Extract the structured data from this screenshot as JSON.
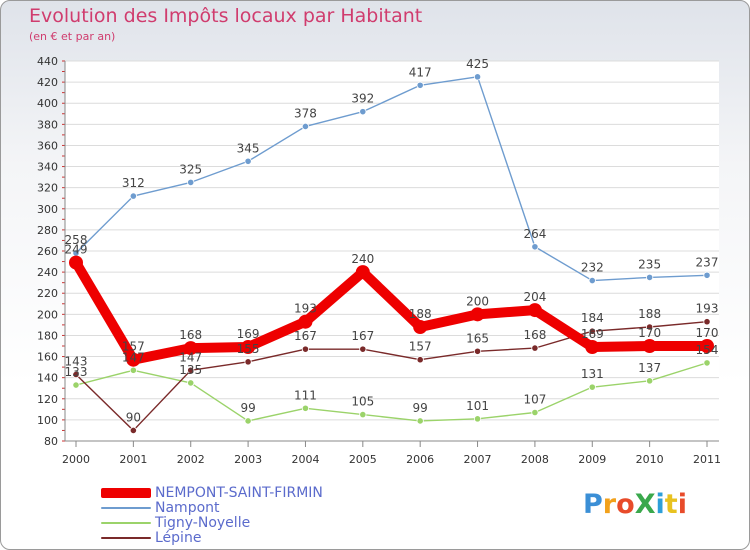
{
  "header": {
    "title": "Evolution des Impôts locaux par Habitant",
    "subtitle": "(en € et par an)"
  },
  "logo": {
    "text": "ProXiti"
  },
  "chart_data": {
    "type": "line",
    "title": "Evolution des Impôts locaux par Habitant",
    "subtitle": "(en € et par an)",
    "xlabel": "",
    "ylabel": "",
    "ylim": [
      80,
      440
    ],
    "yticks": [
      "80",
      "100",
      "120",
      "140",
      "160",
      "180",
      "200",
      "220",
      "240",
      "260",
      "280",
      "300",
      "320",
      "340",
      "360",
      "380",
      "400",
      "420",
      "440"
    ],
    "categories": [
      "2000",
      "2001",
      "2002",
      "2003",
      "2004",
      "2005",
      "2006",
      "2007",
      "2008",
      "2009",
      "2010",
      "2011"
    ],
    "grid": "horizontal",
    "legend_position": "bottom-left",
    "series": [
      {
        "name": "NEMPONT-SAINT-FIRMIN",
        "color": "#ee0000",
        "values": [
          249,
          157,
          168,
          169,
          193,
          240,
          188,
          200,
          204,
          169,
          170,
          170
        ]
      },
      {
        "name": "Nampont",
        "color": "#6e9ccf",
        "values": [
          258,
          312,
          325,
          345,
          378,
          392,
          417,
          425,
          264,
          232,
          235,
          237
        ]
      },
      {
        "name": "Tigny-Noyelle",
        "color": "#9bd36a",
        "values": [
          133,
          147,
          135,
          99,
          111,
          105,
          99,
          101,
          107,
          131,
          137,
          154
        ]
      },
      {
        "name": "Lépine",
        "color": "#7a2a2a",
        "values": [
          143,
          90,
          147,
          155,
          167,
          167,
          157,
          165,
          168,
          184,
          188,
          193
        ]
      }
    ]
  }
}
